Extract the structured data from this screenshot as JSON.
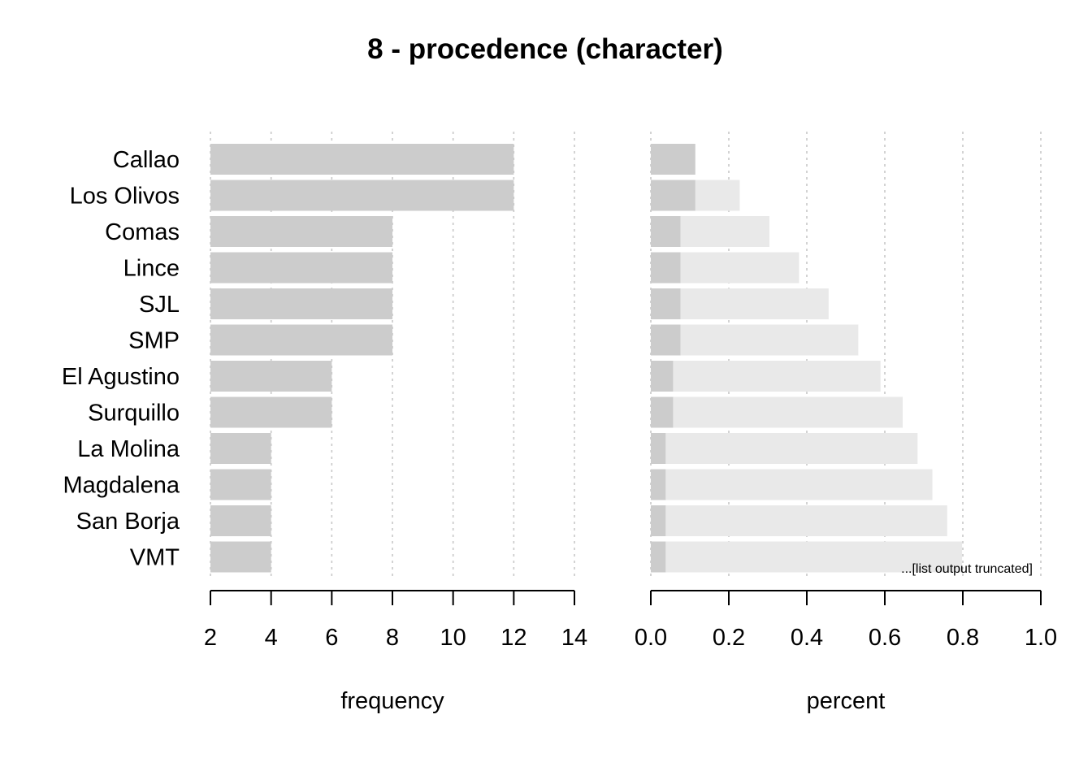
{
  "chart_data": {
    "type": "bar",
    "title": "8 - procedence (character)",
    "categories": [
      "Callao",
      "Los Olivos",
      "Comas",
      "Lince",
      "SJL",
      "SMP",
      "El Agustino",
      "Surquillo",
      "La Molina",
      "Magdalena",
      "San Borja",
      "VMT"
    ],
    "note": "...[list output truncated]",
    "frequency": {
      "xlabel": "frequency",
      "values": [
        12,
        12,
        8,
        8,
        8,
        8,
        6,
        6,
        4,
        4,
        4,
        4
      ],
      "xlim": [
        2,
        14
      ],
      "ticks": [
        "2",
        "4",
        "6",
        "8",
        "10",
        "12",
        "14"
      ],
      "grid": true
    },
    "percent": {
      "xlabel": "percent",
      "values": [
        0.114,
        0.114,
        0.076,
        0.076,
        0.076,
        0.076,
        0.057,
        0.057,
        0.038,
        0.038,
        0.038,
        0.038
      ],
      "cumulative": [
        0.114,
        0.228,
        0.304,
        0.38,
        0.456,
        0.532,
        0.589,
        0.646,
        0.684,
        0.722,
        0.76,
        0.798
      ],
      "xlim": [
        0,
        1
      ],
      "ticks": [
        "0.0",
        "0.2",
        "0.4",
        "0.6",
        "0.8",
        "1.0"
      ],
      "grid": true
    },
    "colors": {
      "bar": "#cccccc",
      "cumulative": "#e9e9e9",
      "grid": "#c8c8c8",
      "axis": "#000000"
    }
  }
}
